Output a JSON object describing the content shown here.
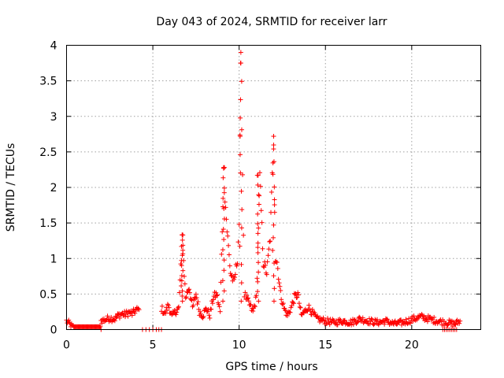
{
  "chart_data": {
    "type": "scatter",
    "title": "Day 043 of 2024, SRMTID for receiver larr",
    "xlabel": "GPS time / hours",
    "ylabel": "SRMTID / TECUs",
    "xlim": [
      0,
      24
    ],
    "ylim": [
      0,
      4
    ],
    "x_ticks": [
      0,
      5,
      10,
      15,
      20
    ],
    "x_tick_labels": [
      "0",
      "5",
      "10",
      "15",
      "20"
    ],
    "y_ticks": [
      0,
      0.5,
      1,
      1.5,
      2,
      2.5,
      3,
      3.5,
      4
    ],
    "y_tick_labels": [
      "0",
      "0.5",
      "1",
      "1.5",
      "2",
      "2.5",
      "3",
      "3.5",
      "4"
    ],
    "grid": true,
    "marker": "plus",
    "color": "#ff0000",
    "series": [
      {
        "name": "SRMTID",
        "segments": [
          {
            "x": [
              0.0,
              0.5,
              1.0,
              1.5,
              2.0
            ],
            "y": [
              0.12,
              0.0,
              0.0,
              0.0,
              0.0
            ]
          },
          {
            "x": [
              2.0,
              2.5,
              2.8,
              3.0,
              3.2,
              3.4,
              3.6,
              3.8,
              4.0,
              4.2
            ],
            "y": [
              0.12,
              0.16,
              0.15,
              0.2,
              0.22,
              0.21,
              0.24,
              0.22,
              0.27,
              0.28
            ]
          },
          {
            "x": [
              4.4,
              4.8,
              5.2,
              5.5
            ],
            "y": [
              0.0,
              0.0,
              0.0,
              0.0
            ]
          },
          {
            "x": [
              5.5,
              5.7,
              5.9,
              6.1,
              6.3,
              6.5,
              6.7,
              6.9,
              7.1,
              7.3,
              7.5,
              7.7,
              7.9,
              8.1,
              8.3,
              8.5,
              8.7,
              8.9,
              9.1,
              9.3,
              9.5,
              9.7,
              9.9,
              10.0,
              10.1,
              10.2,
              10.3,
              10.4,
              10.6,
              10.8,
              11.0,
              11.2,
              11.4,
              11.6,
              11.8,
              12.0,
              12.1,
              12.2,
              12.4,
              12.6,
              12.8,
              13.0,
              13.2,
              13.4,
              13.6,
              13.8,
              14.0,
              14.5,
              15.0,
              15.5,
              16.0,
              16.5,
              17.0,
              17.5,
              18.0,
              18.5,
              19.0,
              19.5,
              20.0,
              20.5,
              21.0,
              21.5,
              22.0,
              22.5,
              22.8
            ],
            "y": [
              0.3,
              0.22,
              0.35,
              0.18,
              0.25,
              0.3,
              1.3,
              0.45,
              0.6,
              0.3,
              0.5,
              0.25,
              0.2,
              0.3,
              0.2,
              0.45,
              0.5,
              0.25,
              2.2,
              1.4,
              0.8,
              0.65,
              1.0,
              1.5,
              3.72,
              2.2,
              0.5,
              0.45,
              0.35,
              0.25,
              0.45,
              2.15,
              0.95,
              0.8,
              1.3,
              2.7,
              1.0,
              0.95,
              0.5,
              0.3,
              0.2,
              0.3,
              0.45,
              0.5,
              0.2,
              0.25,
              0.32,
              0.15,
              0.12,
              0.1,
              0.12,
              0.1,
              0.15,
              0.12,
              0.1,
              0.12,
              0.08,
              0.1,
              0.14,
              0.18,
              0.15,
              0.12,
              0.1,
              0.08,
              0.12
            ]
          },
          {
            "x": [
              21.8,
              22.0,
              22.2,
              22.4,
              22.6
            ],
            "y": [
              0.0,
              0.0,
              0.0,
              0.0,
              0.0
            ]
          }
        ],
        "peaks": [
          {
            "x": 6.7,
            "y": 1.33
          },
          {
            "x": 9.1,
            "y": 2.28
          },
          {
            "x": 10.1,
            "y": 3.75
          },
          {
            "x": 11.1,
            "y": 2.17
          },
          {
            "x": 12.0,
            "y": 2.72
          }
        ]
      }
    ]
  }
}
